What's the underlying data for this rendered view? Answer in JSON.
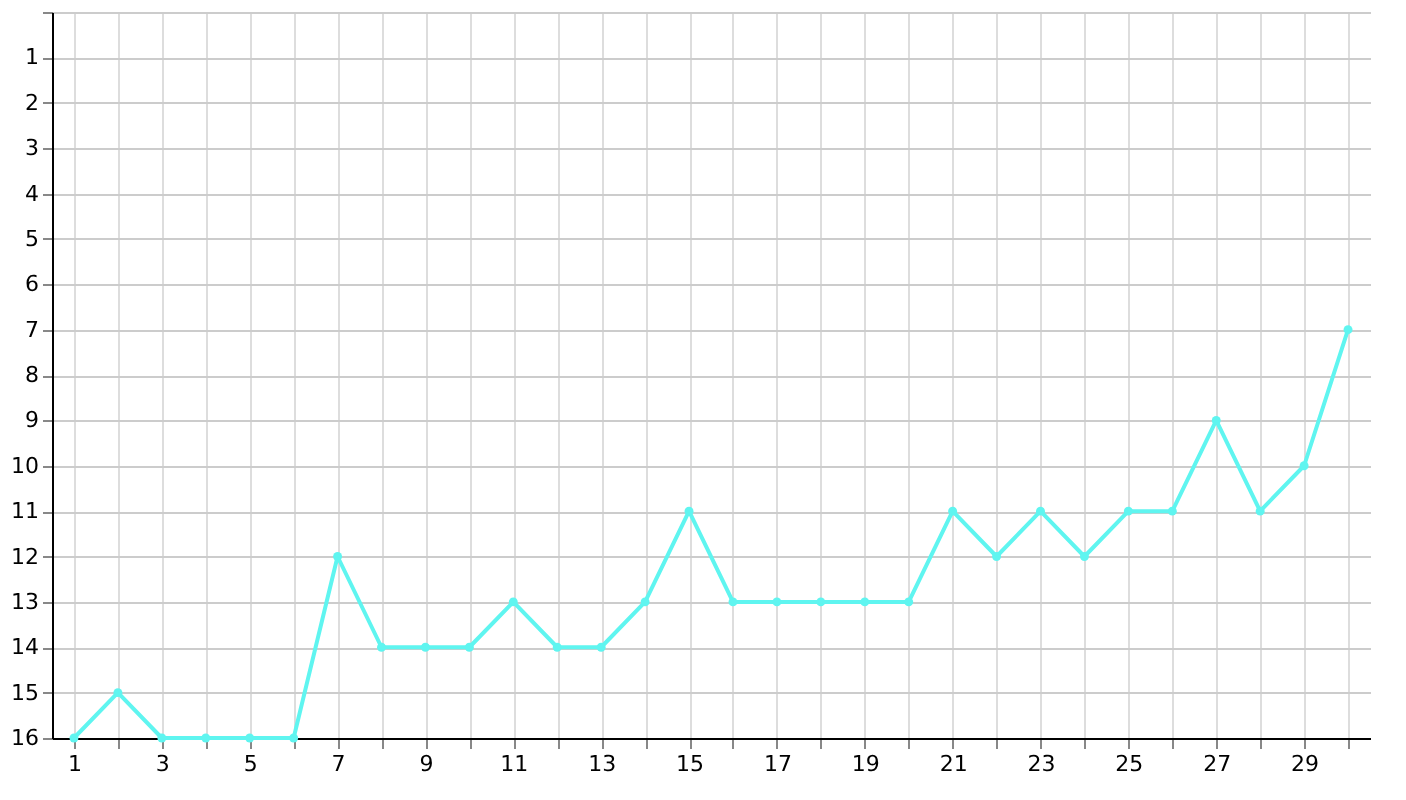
{
  "chart_data": {
    "type": "line",
    "x": [
      1,
      2,
      3,
      4,
      5,
      6,
      7,
      8,
      9,
      10,
      11,
      12,
      13,
      14,
      15,
      16,
      17,
      18,
      19,
      20,
      21,
      22,
      23,
      24,
      25,
      26,
      27,
      28,
      29,
      30
    ],
    "series": [
      {
        "color": "#5ff5f0",
        "values": [
          16,
          15,
          16,
          16,
          16,
          16,
          12,
          14,
          14,
          14,
          13,
          14,
          14,
          13,
          11,
          13,
          13,
          13,
          13,
          13,
          11,
          12,
          11,
          12,
          11,
          11,
          9,
          11,
          10,
          7
        ]
      }
    ],
    "xlim": [
      0.5,
      30.5
    ],
    "xticks": [
      1,
      {
        "value": 2,
        "label": null
      },
      3,
      {
        "value": 4,
        "label": null
      },
      5,
      {
        "value": 6,
        "label": null
      },
      7,
      {
        "value": 8,
        "label": null
      },
      9,
      {
        "value": 10,
        "label": null
      },
      11,
      {
        "value": 12,
        "label": null
      },
      13,
      {
        "value": 14,
        "label": null
      },
      15,
      {
        "value": 16,
        "label": null
      },
      17,
      {
        "value": 18,
        "label": null
      },
      19,
      {
        "value": 20,
        "label": null
      },
      21,
      {
        "value": 22,
        "label": null
      },
      23,
      {
        "value": 24,
        "label": null
      },
      25,
      {
        "value": 26,
        "label": null
      },
      27,
      {
        "value": 28,
        "label": null
      },
      29,
      {
        "value": 30,
        "label": null
      }
    ],
    "ylim": [
      16,
      0
    ],
    "yticks": [
      {
        "value": 0,
        "label": null
      },
      1,
      2,
      3,
      4,
      5,
      6,
      7,
      8,
      9,
      10,
      11,
      12,
      13,
      14,
      15,
      16
    ],
    "grid": true,
    "marker": "circle",
    "line_style": "solid"
  }
}
